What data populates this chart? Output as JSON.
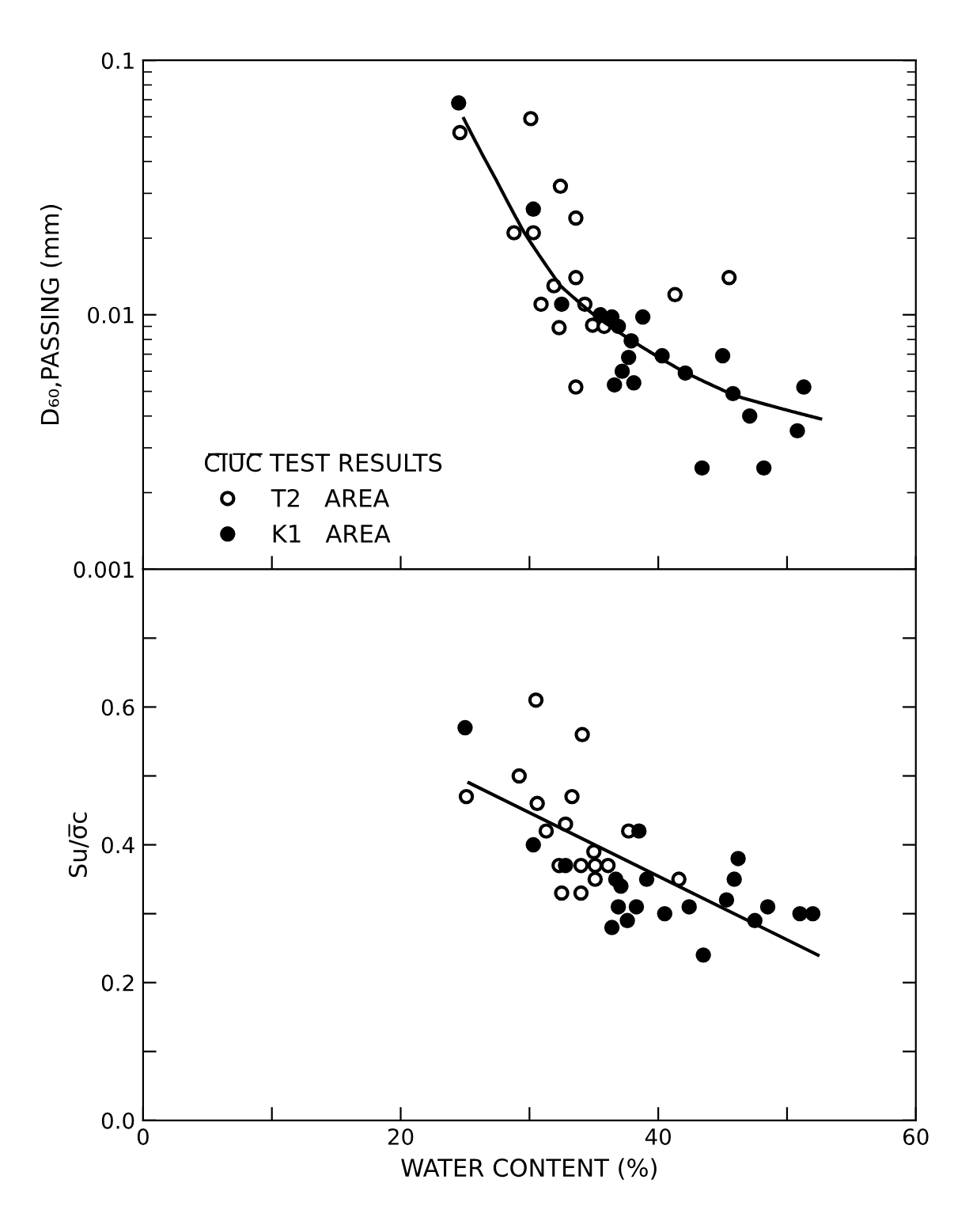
{
  "chart_data": [
    {
      "type": "scatter",
      "ylabel": "D₆₀,PASSING (mm)",
      "legend_title": "C̅I̅U̅C̅ TEST RESULTS",
      "legend": "bottom left",
      "log": "y",
      "marker": "circle",
      "tick_labels": "y",
      "xlim": [
        0,
        60
      ],
      "ylim": [
        0.001,
        0.1
      ],
      "yticks": [
        0.001,
        0.01,
        0.1
      ],
      "series": [
        {
          "name": "T2   AREA",
          "color": "#ffffff",
          "x": [
            24.6,
            30.1,
            32.4,
            33.6,
            28.8,
            30.3,
            31.9,
            33.6,
            30.9,
            34.3,
            32.3,
            34.9,
            35.8,
            33.6,
            41.3,
            45.5
          ],
          "values": [
            0.052,
            0.059,
            0.032,
            0.024,
            0.021,
            0.021,
            0.013,
            0.014,
            0.011,
            0.011,
            0.0089,
            0.0091,
            0.009,
            0.0052,
            0.012,
            0.014
          ]
        },
        {
          "name": "K1   AREA",
          "color": "#000000",
          "x": [
            24.5,
            30.3,
            32.5,
            35.5,
            36.4,
            36.9,
            38.8,
            37.9,
            37.7,
            37.2,
            36.6,
            38.1,
            40.3,
            42.1,
            45.0,
            45.8,
            47.1,
            50.8,
            51.3,
            43.4,
            48.2
          ],
          "values": [
            0.068,
            0.026,
            0.011,
            0.01,
            0.0098,
            0.009,
            0.0098,
            0.0079,
            0.0068,
            0.006,
            0.0053,
            0.0054,
            0.0069,
            0.0059,
            0.0069,
            0.0049,
            0.004,
            0.0035,
            0.0052,
            0.0025,
            0.0025
          ]
        },
        {
          "type": "line",
          "color": "#000000",
          "marker": "none",
          "x": [
            24.9,
            27.4,
            29.6,
            32.4,
            35.1,
            37.8,
            41.9,
            46.0,
            52.6
          ],
          "values": [
            0.059,
            0.034,
            0.021,
            0.013,
            0.0099,
            0.008,
            0.006,
            0.0048,
            0.0039
          ]
        }
      ]
    },
    {
      "type": "scatter",
      "xlabel": "WATER CONTENT (%)",
      "ylabel": "Su/σ̅c",
      "marker": "circle",
      "xlim": [
        0,
        60
      ],
      "xticks": [
        0,
        {
          "value": 10,
          "label": null
        },
        20,
        {
          "value": 30,
          "label": null
        },
        40,
        {
          "value": 50,
          "label": null
        },
        60
      ],
      "ylim": [
        0,
        0.8
      ],
      "yticks": [
        {
          "value": 0,
          "label": "0.0"
        },
        {
          "value": 0.1,
          "label": null
        },
        0.2,
        {
          "value": 0.3,
          "label": null
        },
        0.4,
        {
          "value": 0.5,
          "label": null
        },
        0.6,
        {
          "value": 0.7,
          "label": null
        }
      ],
      "series": [
        {
          "color": "#ffffff",
          "x": [
            25.1,
            30.5,
            34.1,
            29.2,
            30.6,
            33.3,
            31.3,
            32.8,
            37.7,
            32.3,
            34.0,
            35.0,
            35.1,
            35.1,
            36.1,
            32.5,
            34.0,
            41.6
          ],
          "values": [
            0.47,
            0.61,
            0.56,
            0.5,
            0.46,
            0.47,
            0.42,
            0.43,
            0.42,
            0.37,
            0.37,
            0.39,
            0.37,
            0.35,
            0.37,
            0.33,
            0.33,
            0.35
          ]
        },
        {
          "color": "#000000",
          "x": [
            25.0,
            30.3,
            32.8,
            36.7,
            37.1,
            38.5,
            39.1,
            36.9,
            38.3,
            37.6,
            36.4,
            40.5,
            42.4,
            43.5,
            45.3,
            45.9,
            46.2,
            47.5,
            48.5,
            51.0,
            52.0
          ],
          "values": [
            0.57,
            0.4,
            0.37,
            0.35,
            0.34,
            0.42,
            0.35,
            0.31,
            0.31,
            0.29,
            0.28,
            0.3,
            0.31,
            0.24,
            0.32,
            0.35,
            0.38,
            0.29,
            0.31,
            0.3,
            0.3
          ]
        },
        {
          "type": "line",
          "color": "#000000",
          "marker": "none",
          "x": [
            25.3,
            52.4
          ],
          "values": [
            0.49,
            0.24
          ]
        }
      ]
    }
  ]
}
